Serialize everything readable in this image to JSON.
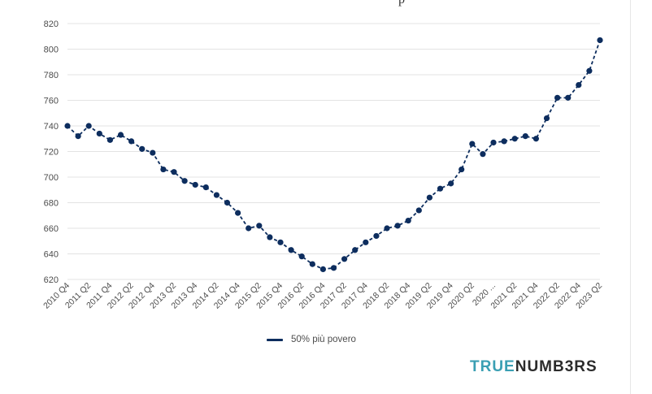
{
  "header_fragment": "p",
  "brand": {
    "part1": "TRUE",
    "part2": "NUMB3RS",
    "color1": "#3a9fb3",
    "color2": "#2b2b2b"
  },
  "colors": {
    "series": "#0d2d5e",
    "grid": "#e3e3e3"
  },
  "chart_data": {
    "type": "line",
    "legend": {
      "position": "bottom-center"
    },
    "grid": true,
    "ylim": [
      620,
      820
    ],
    "yticks": [
      620,
      640,
      660,
      680,
      700,
      720,
      740,
      760,
      780,
      800,
      820
    ],
    "xtick_labels": [
      "2010 Q4",
      "2011 Q2",
      "2011 Q4",
      "2012 Q2",
      "2012 Q4",
      "2013 Q2",
      "2013 Q4",
      "2014 Q2",
      "2014 Q4",
      "2015 Q2",
      "2015 Q4",
      "2016 Q2",
      "2016 Q4",
      "2017 Q2",
      "2017 Q4",
      "2018 Q2",
      "2018 Q4",
      "2019 Q2",
      "2019 Q4",
      "2020 Q2",
      "2020 ...",
      "2021 Q2",
      "2021 Q4",
      "2022 Q2",
      "2022 Q4",
      "2023 Q2"
    ],
    "x": [
      "2010 Q4",
      "2011 Q1",
      "2011 Q2",
      "2011 Q3",
      "2011 Q4",
      "2012 Q1",
      "2012 Q2",
      "2012 Q3",
      "2012 Q4",
      "2013 Q1",
      "2013 Q2",
      "2013 Q3",
      "2013 Q4",
      "2014 Q1",
      "2014 Q2",
      "2014 Q3",
      "2014 Q4",
      "2015 Q1",
      "2015 Q2",
      "2015 Q3",
      "2015 Q4",
      "2016 Q1",
      "2016 Q2",
      "2016 Q3",
      "2016 Q4",
      "2017 Q1",
      "2017 Q2",
      "2017 Q3",
      "2017 Q4",
      "2018 Q1",
      "2018 Q2",
      "2018 Q3",
      "2018 Q4",
      "2019 Q1",
      "2019 Q2",
      "2019 Q3",
      "2019 Q4",
      "2020 Q1",
      "2020 Q2",
      "2020 Q3",
      "2020 Q4",
      "2021 Q1",
      "2021 Q2",
      "2021 Q3",
      "2021 Q4",
      "2022 Q1",
      "2022 Q2",
      "2022 Q3",
      "2022 Q4",
      "2023 Q1",
      "2023 Q2"
    ],
    "series": [
      {
        "name": "50% più povero",
        "values": [
          740,
          732,
          740,
          734,
          729,
          733,
          728,
          722,
          719,
          706,
          704,
          697,
          694,
          692,
          686,
          680,
          672,
          660,
          662,
          653,
          649,
          643,
          638,
          632,
          628,
          629,
          636,
          643,
          649,
          654,
          660,
          662,
          666,
          674,
          684,
          691,
          695,
          706,
          726,
          718,
          727,
          728,
          730,
          732,
          730,
          746,
          762,
          762,
          772,
          783,
          807
        ]
      }
    ]
  }
}
